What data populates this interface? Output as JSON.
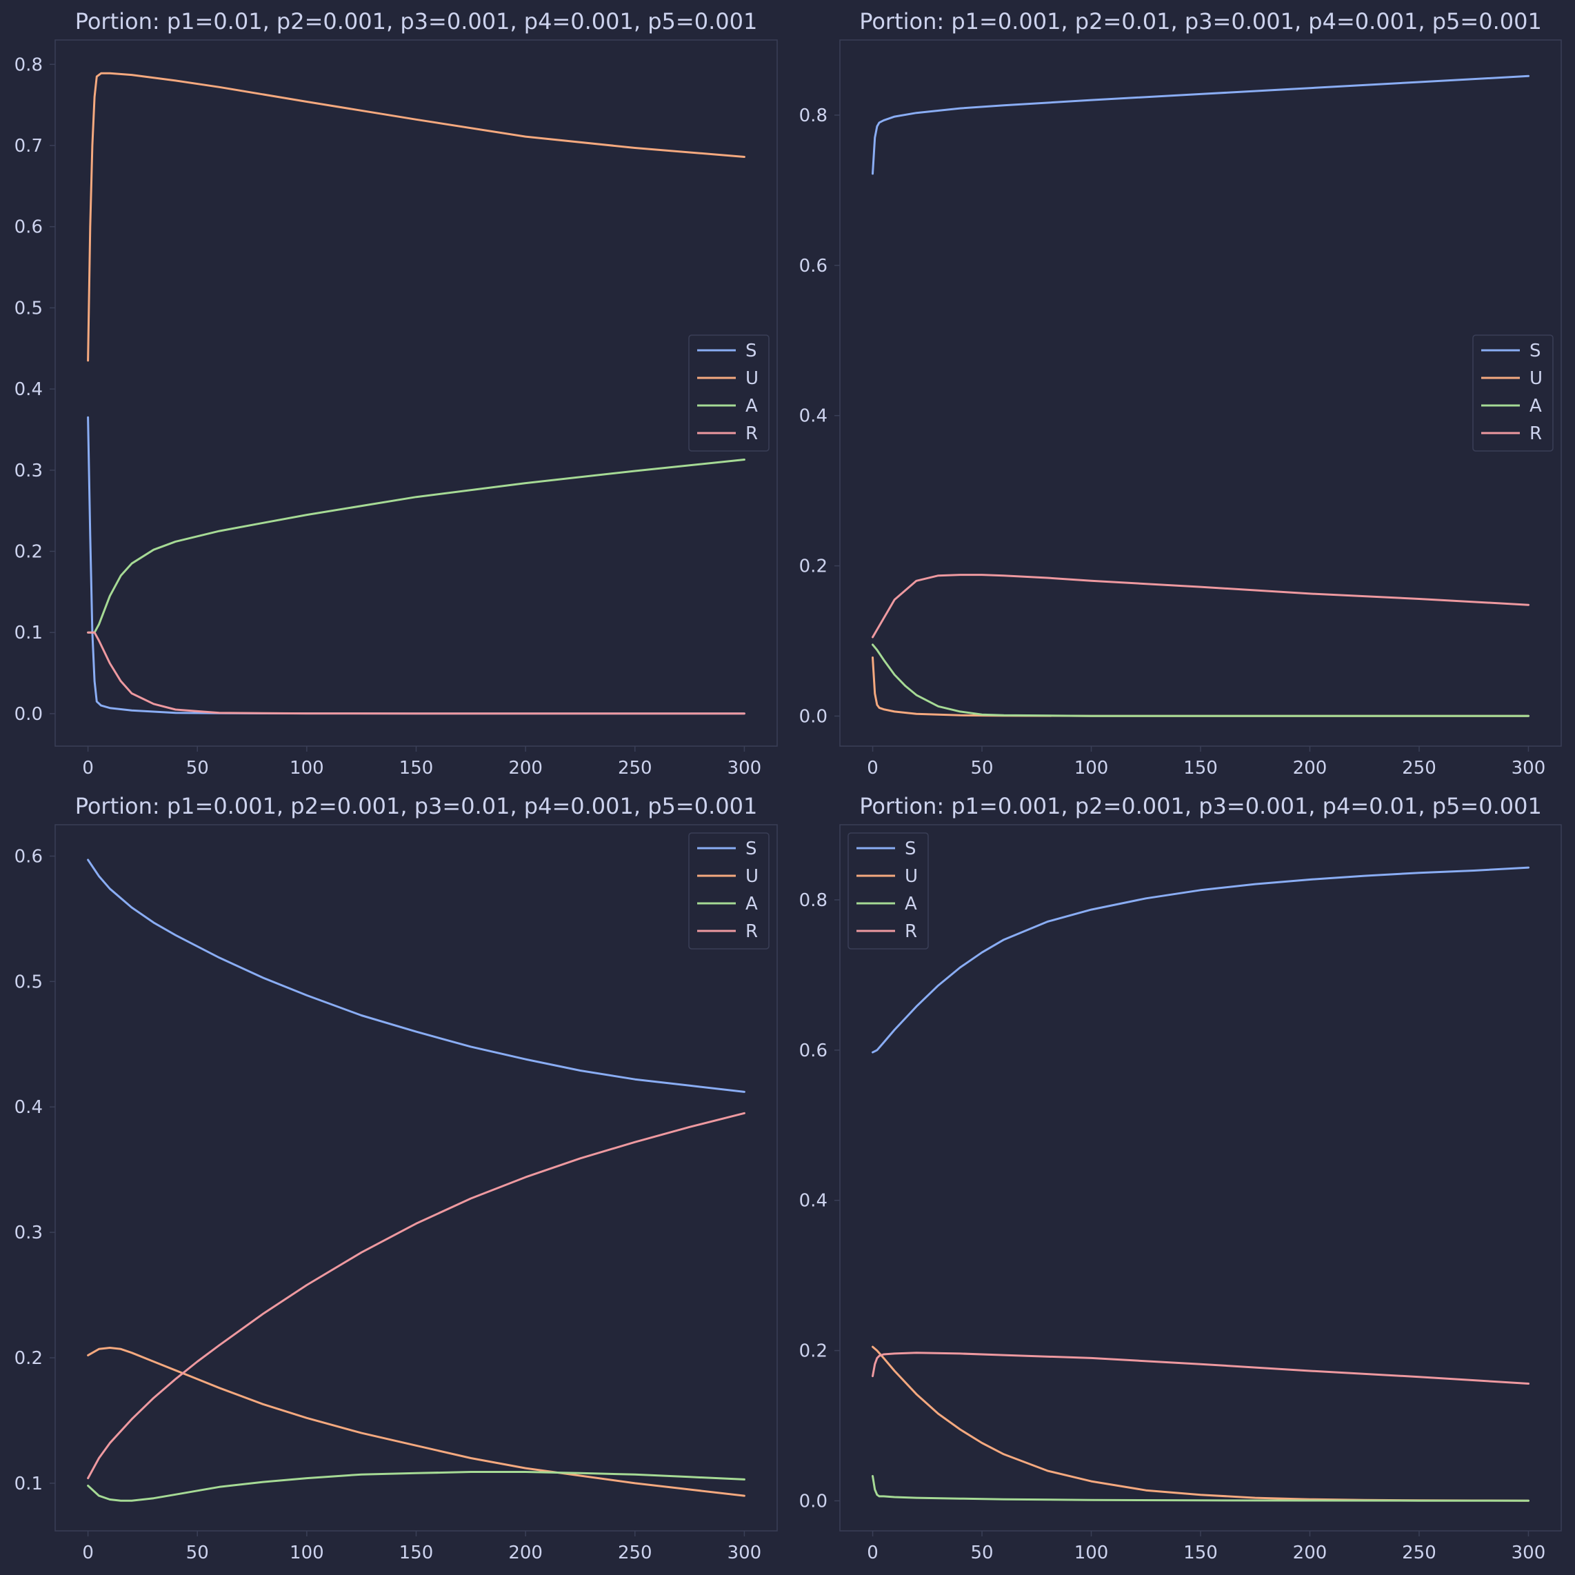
{
  "colors": {
    "background": "#232639",
    "axes_frame": "#3a3f57",
    "text": "#cdd3ee",
    "legend_bg": "#232639",
    "legend_border": "#3a3f57"
  },
  "chart_data": [
    {
      "type": "line",
      "title": "Portion: p1=0.01, p2=0.001, p3=0.001, p4=0.001, p5=0.001",
      "xlabel": "",
      "ylabel": "",
      "xlim": [
        -15,
        315
      ],
      "ylim": [
        -0.04,
        0.83
      ],
      "xticks": [
        0,
        50,
        100,
        150,
        200,
        250,
        300
      ],
      "xtick_labels": [
        "0",
        "50",
        "100",
        "150",
        "200",
        "250",
        "300"
      ],
      "yticks": [
        0,
        0.1,
        0.2,
        0.3,
        0.4,
        0.5,
        0.6,
        0.7,
        0.8
      ],
      "ytick_labels": [
        "0.0",
        "0.1",
        "0.2",
        "0.3",
        "0.4",
        "0.5",
        "0.6",
        "0.7",
        "0.8"
      ],
      "grid": false,
      "legend": "center-right",
      "series": [
        {
          "name": "S",
          "color": "#8aadf4",
          "x": [
            0,
            1,
            2,
            3,
            4,
            6,
            10,
            20,
            40,
            60,
            100,
            150,
            200,
            250,
            300
          ],
          "y": [
            0.365,
            0.22,
            0.1,
            0.04,
            0.015,
            0.01,
            0.007,
            0.004,
            0.001,
            0.0005,
            0.0003,
            0.0002,
            0.0002,
            0.0001,
            0.0001
          ]
        },
        {
          "name": "U",
          "color": "#f5a97f",
          "x": [
            0,
            1,
            2,
            3,
            4,
            6,
            10,
            20,
            40,
            60,
            100,
            150,
            200,
            250,
            300
          ],
          "y": [
            0.435,
            0.6,
            0.7,
            0.76,
            0.785,
            0.789,
            0.789,
            0.787,
            0.78,
            0.772,
            0.754,
            0.732,
            0.711,
            0.697,
            0.686
          ]
        },
        {
          "name": "A",
          "color": "#a6da95",
          "x": [
            0,
            3,
            5,
            10,
            15,
            20,
            30,
            40,
            60,
            80,
            100,
            150,
            200,
            250,
            300
          ],
          "y": [
            0.1,
            0.1,
            0.11,
            0.145,
            0.17,
            0.185,
            0.202,
            0.212,
            0.225,
            0.235,
            0.245,
            0.267,
            0.284,
            0.299,
            0.313
          ]
        },
        {
          "name": "R",
          "color": "#ee99a0",
          "x": [
            0,
            3,
            5,
            10,
            15,
            20,
            30,
            40,
            60,
            80,
            100,
            150,
            200,
            250,
            300
          ],
          "y": [
            0.1,
            0.1,
            0.09,
            0.062,
            0.04,
            0.025,
            0.012,
            0.005,
            0.001,
            0.0005,
            0.0003,
            0.0002,
            0.0001,
            0.0001,
            0.0001
          ]
        }
      ]
    },
    {
      "type": "line",
      "title": "Portion: p1=0.001, p2=0.01, p3=0.001, p4=0.001, p5=0.001",
      "xlabel": "",
      "ylabel": "",
      "xlim": [
        -15,
        315
      ],
      "ylim": [
        -0.04,
        0.9
      ],
      "xticks": [
        0,
        50,
        100,
        150,
        200,
        250,
        300
      ],
      "xtick_labels": [
        "0",
        "50",
        "100",
        "150",
        "200",
        "250",
        "300"
      ],
      "yticks": [
        0,
        0.2,
        0.4,
        0.6,
        0.8
      ],
      "ytick_labels": [
        "0.0",
        "0.2",
        "0.4",
        "0.6",
        "0.8"
      ],
      "grid": false,
      "legend": "center-right",
      "series": [
        {
          "name": "S",
          "color": "#8aadf4",
          "x": [
            0,
            1,
            2,
            3,
            5,
            10,
            20,
            40,
            60,
            100,
            150,
            200,
            250,
            300
          ],
          "y": [
            0.722,
            0.77,
            0.785,
            0.79,
            0.793,
            0.798,
            0.803,
            0.809,
            0.813,
            0.82,
            0.828,
            0.836,
            0.844,
            0.852
          ]
        },
        {
          "name": "U",
          "color": "#f5a97f",
          "x": [
            0,
            1,
            2,
            3,
            5,
            10,
            20,
            40,
            60,
            100,
            150,
            200,
            250,
            300
          ],
          "y": [
            0.078,
            0.03,
            0.015,
            0.011,
            0.009,
            0.006,
            0.003,
            0.001,
            0.0005,
            0.0002,
            0.0001,
            0.0001,
            0.0001,
            0.0001
          ]
        },
        {
          "name": "A",
          "color": "#a6da95",
          "x": [
            0,
            2,
            5,
            10,
            15,
            20,
            30,
            40,
            50,
            60,
            100,
            150,
            200,
            250,
            300
          ],
          "y": [
            0.095,
            0.088,
            0.075,
            0.055,
            0.04,
            0.028,
            0.013,
            0.006,
            0.002,
            0.001,
            0.0002,
            0.0001,
            0.0001,
            0.0001,
            0.0001
          ]
        },
        {
          "name": "R",
          "color": "#ee99a0",
          "x": [
            0,
            5,
            10,
            20,
            30,
            40,
            50,
            60,
            80,
            100,
            150,
            200,
            250,
            300
          ],
          "y": [
            0.105,
            0.13,
            0.155,
            0.18,
            0.187,
            0.188,
            0.188,
            0.187,
            0.184,
            0.18,
            0.172,
            0.163,
            0.156,
            0.148
          ]
        }
      ]
    },
    {
      "type": "line",
      "title": "Portion: p1=0.001, p2=0.001, p3=0.01, p4=0.001, p5=0.001",
      "xlabel": "",
      "ylabel": "",
      "xlim": [
        -15,
        315
      ],
      "ylim": [
        0.062,
        0.625
      ],
      "xticks": [
        0,
        50,
        100,
        150,
        200,
        250,
        300
      ],
      "xtick_labels": [
        "0",
        "50",
        "100",
        "150",
        "200",
        "250",
        "300"
      ],
      "yticks": [
        0.1,
        0.2,
        0.3,
        0.4,
        0.5,
        0.6
      ],
      "ytick_labels": [
        "0.1",
        "0.2",
        "0.3",
        "0.4",
        "0.5",
        "0.6"
      ],
      "grid": false,
      "legend": "upper right",
      "series": [
        {
          "name": "S",
          "color": "#8aadf4",
          "x": [
            0,
            5,
            10,
            20,
            30,
            40,
            50,
            60,
            80,
            100,
            125,
            150,
            175,
            200,
            225,
            250,
            275,
            300
          ],
          "y": [
            0.597,
            0.584,
            0.574,
            0.559,
            0.547,
            0.537,
            0.528,
            0.519,
            0.503,
            0.489,
            0.473,
            0.46,
            0.448,
            0.438,
            0.429,
            0.422,
            0.417,
            0.412
          ]
        },
        {
          "name": "U",
          "color": "#f5a97f",
          "x": [
            0,
            5,
            10,
            15,
            20,
            30,
            40,
            50,
            60,
            80,
            100,
            125,
            150,
            175,
            200,
            225,
            250,
            275,
            300
          ],
          "y": [
            0.202,
            0.207,
            0.208,
            0.207,
            0.204,
            0.197,
            0.19,
            0.183,
            0.176,
            0.163,
            0.152,
            0.14,
            0.13,
            0.12,
            0.112,
            0.106,
            0.1,
            0.095,
            0.09
          ]
        },
        {
          "name": "A",
          "color": "#a6da95",
          "x": [
            0,
            5,
            10,
            15,
            20,
            30,
            40,
            50,
            60,
            80,
            100,
            125,
            150,
            175,
            200,
            225,
            250,
            275,
            300
          ],
          "y": [
            0.098,
            0.09,
            0.087,
            0.086,
            0.086,
            0.088,
            0.091,
            0.094,
            0.097,
            0.101,
            0.104,
            0.107,
            0.108,
            0.109,
            0.109,
            0.108,
            0.107,
            0.105,
            0.103
          ]
        },
        {
          "name": "R",
          "color": "#ee99a0",
          "x": [
            0,
            5,
            10,
            20,
            30,
            40,
            50,
            60,
            80,
            100,
            125,
            150,
            175,
            200,
            225,
            250,
            275,
            300
          ],
          "y": [
            0.104,
            0.12,
            0.132,
            0.151,
            0.168,
            0.183,
            0.197,
            0.21,
            0.235,
            0.258,
            0.284,
            0.307,
            0.327,
            0.344,
            0.359,
            0.372,
            0.384,
            0.395
          ]
        }
      ]
    },
    {
      "type": "line",
      "title": "Portion: p1=0.001, p2=0.001, p3=0.001, p4=0.01, p5=0.001",
      "xlabel": "",
      "ylabel": "",
      "xlim": [
        -15,
        315
      ],
      "ylim": [
        -0.04,
        0.9
      ],
      "xticks": [
        0,
        50,
        100,
        150,
        200,
        250,
        300
      ],
      "xtick_labels": [
        "0",
        "50",
        "100",
        "150",
        "200",
        "250",
        "300"
      ],
      "yticks": [
        0,
        0.2,
        0.4,
        0.6,
        0.8
      ],
      "ytick_labels": [
        "0.0",
        "0.2",
        "0.4",
        "0.6",
        "0.8"
      ],
      "grid": false,
      "legend": "upper left",
      "series": [
        {
          "name": "S",
          "color": "#8aadf4",
          "x": [
            0,
            2,
            5,
            10,
            20,
            30,
            40,
            50,
            60,
            80,
            100,
            125,
            150,
            175,
            200,
            225,
            250,
            275,
            300
          ],
          "y": [
            0.597,
            0.6,
            0.61,
            0.627,
            0.658,
            0.686,
            0.71,
            0.73,
            0.747,
            0.771,
            0.787,
            0.802,
            0.813,
            0.821,
            0.827,
            0.832,
            0.836,
            0.839,
            0.843
          ]
        },
        {
          "name": "U",
          "color": "#f5a97f",
          "x": [
            0,
            2,
            5,
            10,
            20,
            30,
            40,
            50,
            60,
            80,
            100,
            125,
            150,
            175,
            200,
            225,
            250,
            275,
            300
          ],
          "y": [
            0.205,
            0.2,
            0.19,
            0.173,
            0.142,
            0.116,
            0.095,
            0.077,
            0.062,
            0.04,
            0.026,
            0.014,
            0.008,
            0.004,
            0.002,
            0.001,
            0.0007,
            0.0004,
            0.0002
          ]
        },
        {
          "name": "A",
          "color": "#a6da95",
          "x": [
            0,
            1,
            2,
            3,
            5,
            10,
            20,
            40,
            60,
            100,
            150,
            200,
            250,
            300
          ],
          "y": [
            0.033,
            0.015,
            0.008,
            0.006,
            0.006,
            0.005,
            0.004,
            0.003,
            0.002,
            0.001,
            0.0006,
            0.0004,
            0.0002,
            0.0001
          ]
        },
        {
          "name": "R",
          "color": "#ee99a0",
          "x": [
            0,
            1,
            2,
            3,
            5,
            10,
            20,
            40,
            60,
            100,
            150,
            200,
            250,
            300
          ],
          "y": [
            0.166,
            0.182,
            0.19,
            0.193,
            0.195,
            0.196,
            0.197,
            0.196,
            0.194,
            0.19,
            0.182,
            0.173,
            0.165,
            0.156
          ]
        }
      ]
    }
  ]
}
